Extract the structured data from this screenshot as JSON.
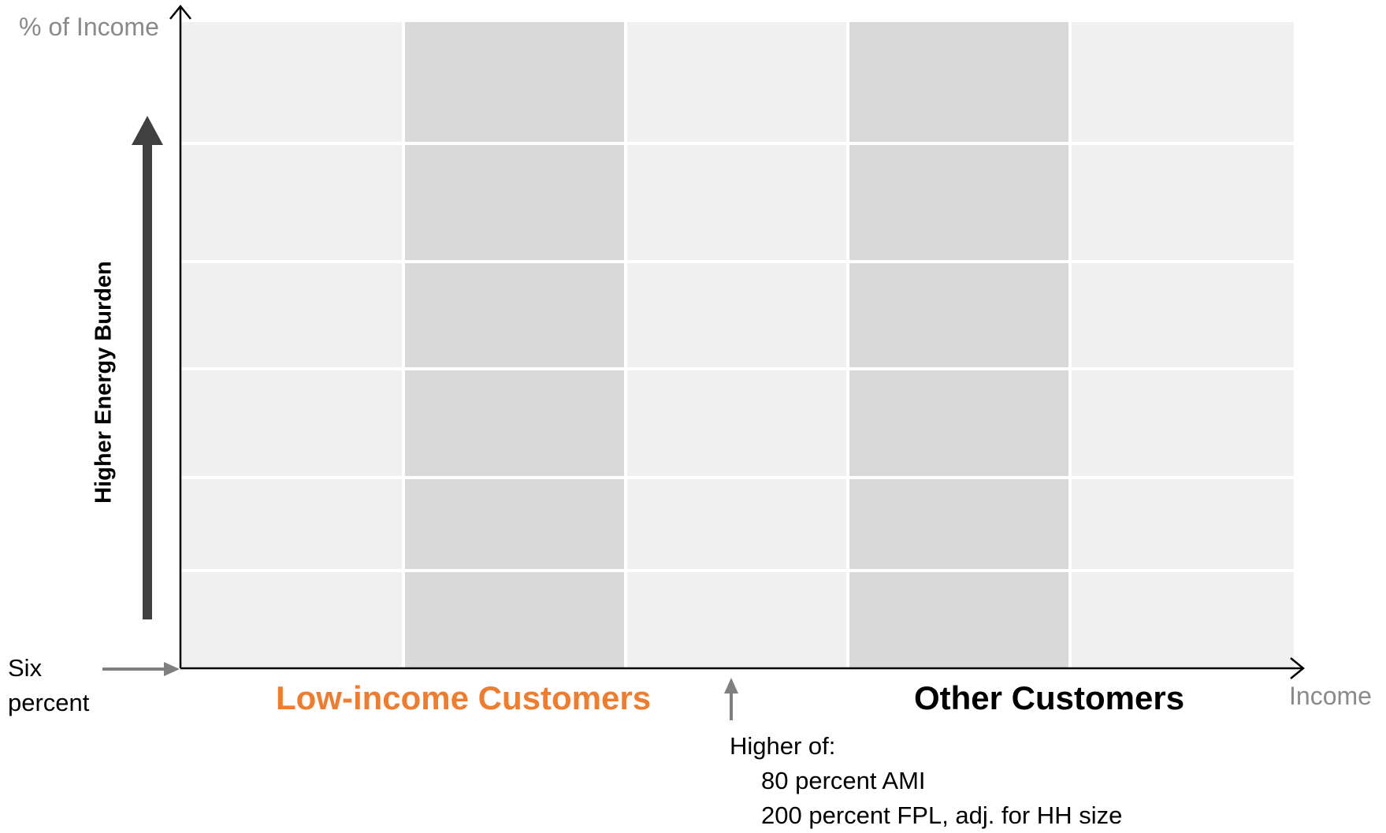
{
  "axes": {
    "y_label": "% of Income",
    "x_label": "Income",
    "baseline_label": "Six percent"
  },
  "arrow_label": "Higher Energy Burden",
  "groups": {
    "low_income": {
      "label": "Low-income Customers",
      "color": "#ED7D31"
    },
    "other": {
      "label": "Other Customers",
      "color": "#000000"
    }
  },
  "threshold": {
    "heading": "Higher of:",
    "criteria": [
      "80 percent AMI",
      "200 percent FPL, adj. for HH size"
    ]
  },
  "grid": {
    "columns": 5,
    "rows": 6,
    "light_fill": "#f0f0f0",
    "dark_fill": "#d9d9d9",
    "dark_columns": [
      1,
      3
    ]
  },
  "colors": {
    "axis": "#000000",
    "big_arrow": "#404040",
    "small_arrow": "#7f7f7f"
  }
}
